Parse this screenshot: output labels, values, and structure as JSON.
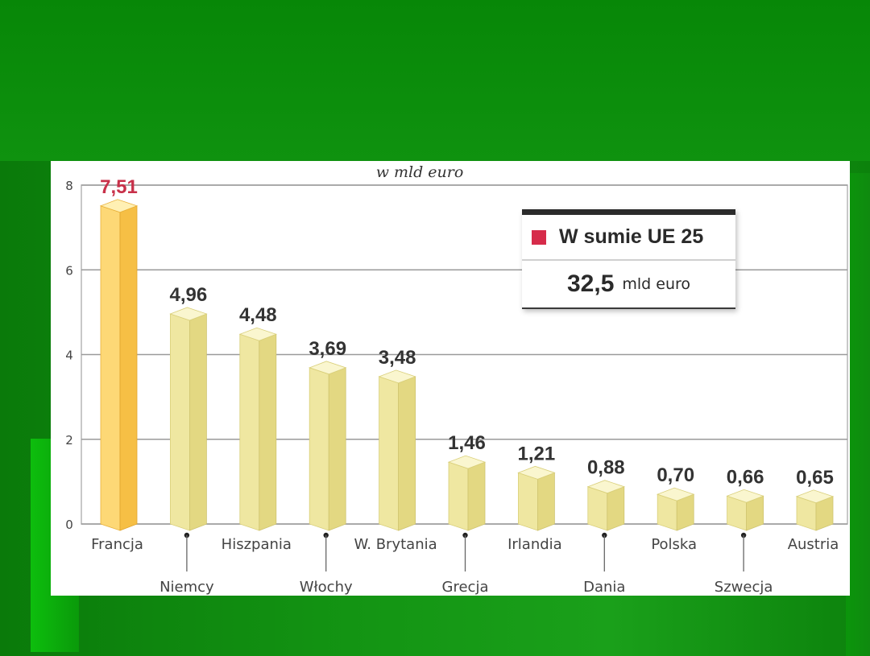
{
  "chart_data": {
    "type": "bar",
    "title": "w mld euro",
    "categories": [
      "Francja",
      "Niemcy",
      "Hiszpania",
      "Włochy",
      "W. Brytania",
      "Grecja",
      "Irlandia",
      "Dania",
      "Polska",
      "Szwecja",
      "Austria"
    ],
    "values": [
      7.51,
      4.96,
      4.48,
      3.69,
      3.48,
      1.46,
      1.21,
      0.88,
      0.7,
      0.66,
      0.65
    ],
    "value_labels": [
      "7,51",
      "4,96",
      "4,48",
      "3,69",
      "3,48",
      "1,46",
      "1,21",
      "0,88",
      "0,70",
      "0,66",
      "0,65"
    ],
    "ylim": [
      0,
      8
    ],
    "yticks": [
      0,
      2,
      4,
      6,
      8
    ],
    "grid": true,
    "colors": {
      "highlight_bar": "#fcc74a",
      "bar": "#eee59a",
      "highlight_label": "#c8314a",
      "label": "#333333",
      "grid": "#9a9a9a"
    }
  },
  "callout": {
    "heading": "W sumie UE 25",
    "total": "32,5",
    "unit": "mld euro"
  }
}
